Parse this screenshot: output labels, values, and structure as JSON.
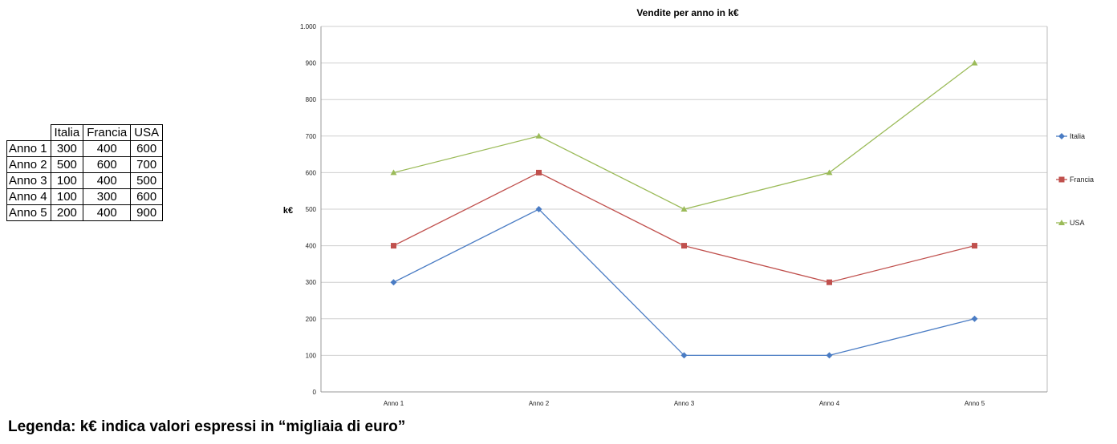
{
  "table": {
    "columns": [
      "Italia",
      "Francia",
      "USA"
    ],
    "rows": [
      {
        "label": "Anno 1",
        "values": [
          "300",
          "400",
          "600"
        ]
      },
      {
        "label": "Anno 2",
        "values": [
          "500",
          "600",
          "700"
        ]
      },
      {
        "label": "Anno 3",
        "values": [
          "100",
          "400",
          "500"
        ]
      },
      {
        "label": "Anno 4",
        "values": [
          "100",
          "300",
          "600"
        ]
      },
      {
        "label": "Anno 5",
        "values": [
          "200",
          "400",
          "900"
        ]
      }
    ]
  },
  "chart_data": {
    "type": "line",
    "title": "Vendite per anno in k€",
    "ylabel": "k€",
    "xlabel": "",
    "categories": [
      "Anno 1",
      "Anno 2",
      "Anno 3",
      "Anno 4",
      "Anno 5"
    ],
    "ylim": [
      0,
      1000
    ],
    "yticks": [
      0,
      100,
      200,
      300,
      400,
      500,
      600,
      700,
      800,
      900,
      1000
    ],
    "ytick_labels": [
      "0",
      "100",
      "200",
      "300",
      "400",
      "500",
      "600",
      "700",
      "800",
      "900",
      "1.000"
    ],
    "grid": true,
    "legend": "right",
    "series": [
      {
        "name": "Italia",
        "values": [
          300,
          500,
          100,
          100,
          200
        ],
        "color": "#4a7cc4",
        "marker": "diamond"
      },
      {
        "name": "Francia",
        "values": [
          400,
          600,
          400,
          300,
          400
        ],
        "color": "#c0504d",
        "marker": "square"
      },
      {
        "name": "USA",
        "values": [
          600,
          700,
          500,
          600,
          900
        ],
        "color": "#9bbb59",
        "marker": "triangle"
      }
    ]
  },
  "footnote": "Legenda: k€ indica valori espressi in “migliaia di euro”"
}
